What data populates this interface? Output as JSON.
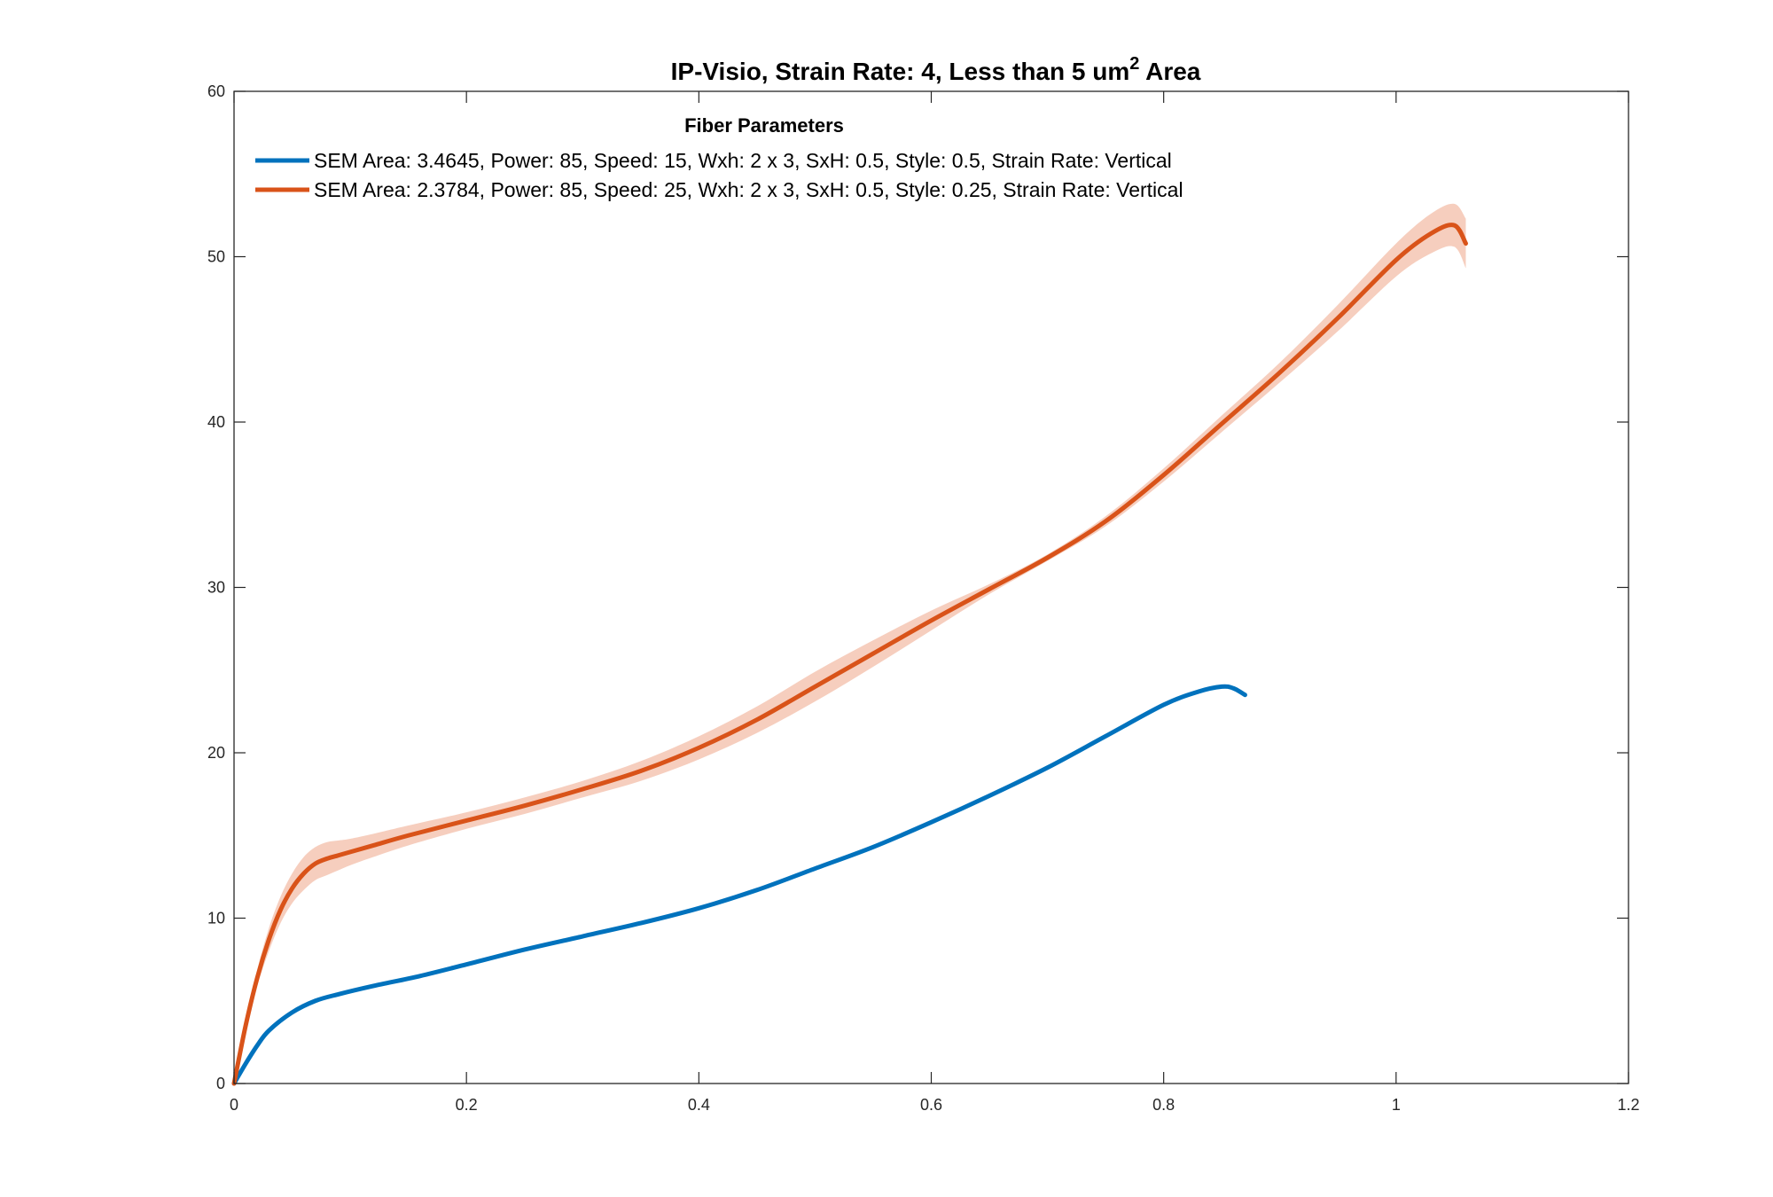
{
  "chart_data": {
    "type": "line",
    "title": "IP-Visio, Strain Rate: 4, Less than 5 um",
    "title_superscript": "2",
    "title_suffix": " Area",
    "xlabel": "",
    "ylabel": "",
    "xlim": [
      0,
      1.2
    ],
    "ylim": [
      0,
      60
    ],
    "xticks": [
      0,
      0.2,
      0.4,
      0.6,
      0.8,
      1,
      1.2
    ],
    "xtick_labels": [
      "0",
      "0.2",
      "0.4",
      "0.6",
      "0.8",
      "1",
      "1.2"
    ],
    "yticks": [
      0,
      10,
      20,
      30,
      40,
      50,
      60
    ],
    "ytick_labels": [
      "0",
      "10",
      "20",
      "30",
      "40",
      "50",
      "60"
    ],
    "grid": false,
    "legend_title": "Fiber Parameters",
    "legend_position": "top-left",
    "series": [
      {
        "name": "SEM Area: 3.4645, Power: 85, Speed: 15, Wxh: 2 x 3, SxH: 0.5, Style: 0.5, Strain Rate: Vertical",
        "color": "#0072BD",
        "x": [
          0,
          0.01,
          0.02,
          0.03,
          0.05,
          0.07,
          0.09,
          0.12,
          0.16,
          0.2,
          0.25,
          0.3,
          0.35,
          0.4,
          0.45,
          0.5,
          0.55,
          0.6,
          0.65,
          0.7,
          0.75,
          0.8,
          0.83,
          0.85,
          0.86,
          0.87
        ],
        "y": [
          0,
          1.2,
          2.3,
          3.2,
          4.3,
          5.0,
          5.4,
          5.9,
          6.5,
          7.2,
          8.1,
          8.9,
          9.7,
          10.6,
          11.7,
          13.0,
          14.3,
          15.8,
          17.4,
          19.1,
          21.0,
          22.9,
          23.7,
          24.0,
          23.9,
          23.5
        ]
      },
      {
        "name": "SEM Area: 2.3784, Power: 85, Speed: 25, Wxh: 2 x 3, SxH: 0.5, Style: 0.25, Strain Rate: Vertical",
        "color": "#D95319",
        "band_color": "#F4C6B3",
        "x": [
          0,
          0.01,
          0.02,
          0.03,
          0.04,
          0.05,
          0.06,
          0.07,
          0.08,
          0.09,
          0.1,
          0.12,
          0.15,
          0.2,
          0.25,
          0.3,
          0.35,
          0.4,
          0.45,
          0.5,
          0.55,
          0.6,
          0.65,
          0.7,
          0.75,
          0.8,
          0.85,
          0.9,
          0.95,
          1.0,
          1.03,
          1.05,
          1.06
        ],
        "y": [
          0,
          3.5,
          6.4,
          8.7,
          10.5,
          11.8,
          12.7,
          13.3,
          13.6,
          13.8,
          14.0,
          14.4,
          15.0,
          15.9,
          16.8,
          17.8,
          18.9,
          20.3,
          22.0,
          24.0,
          26.0,
          28.0,
          29.9,
          31.8,
          34.0,
          36.8,
          39.9,
          43.0,
          46.3,
          49.8,
          51.4,
          51.9,
          50.8
        ],
        "band_halfwidth": [
          0,
          0.3,
          0.5,
          0.7,
          0.8,
          0.9,
          1.0,
          1.0,
          1.0,
          0.9,
          0.8,
          0.7,
          0.6,
          0.5,
          0.5,
          0.5,
          0.6,
          0.7,
          0.8,
          0.9,
          0.8,
          0.6,
          0.3,
          0.2,
          0.3,
          0.4,
          0.5,
          0.6,
          0.8,
          1.0,
          1.2,
          1.3,
          1.5
        ]
      }
    ]
  }
}
